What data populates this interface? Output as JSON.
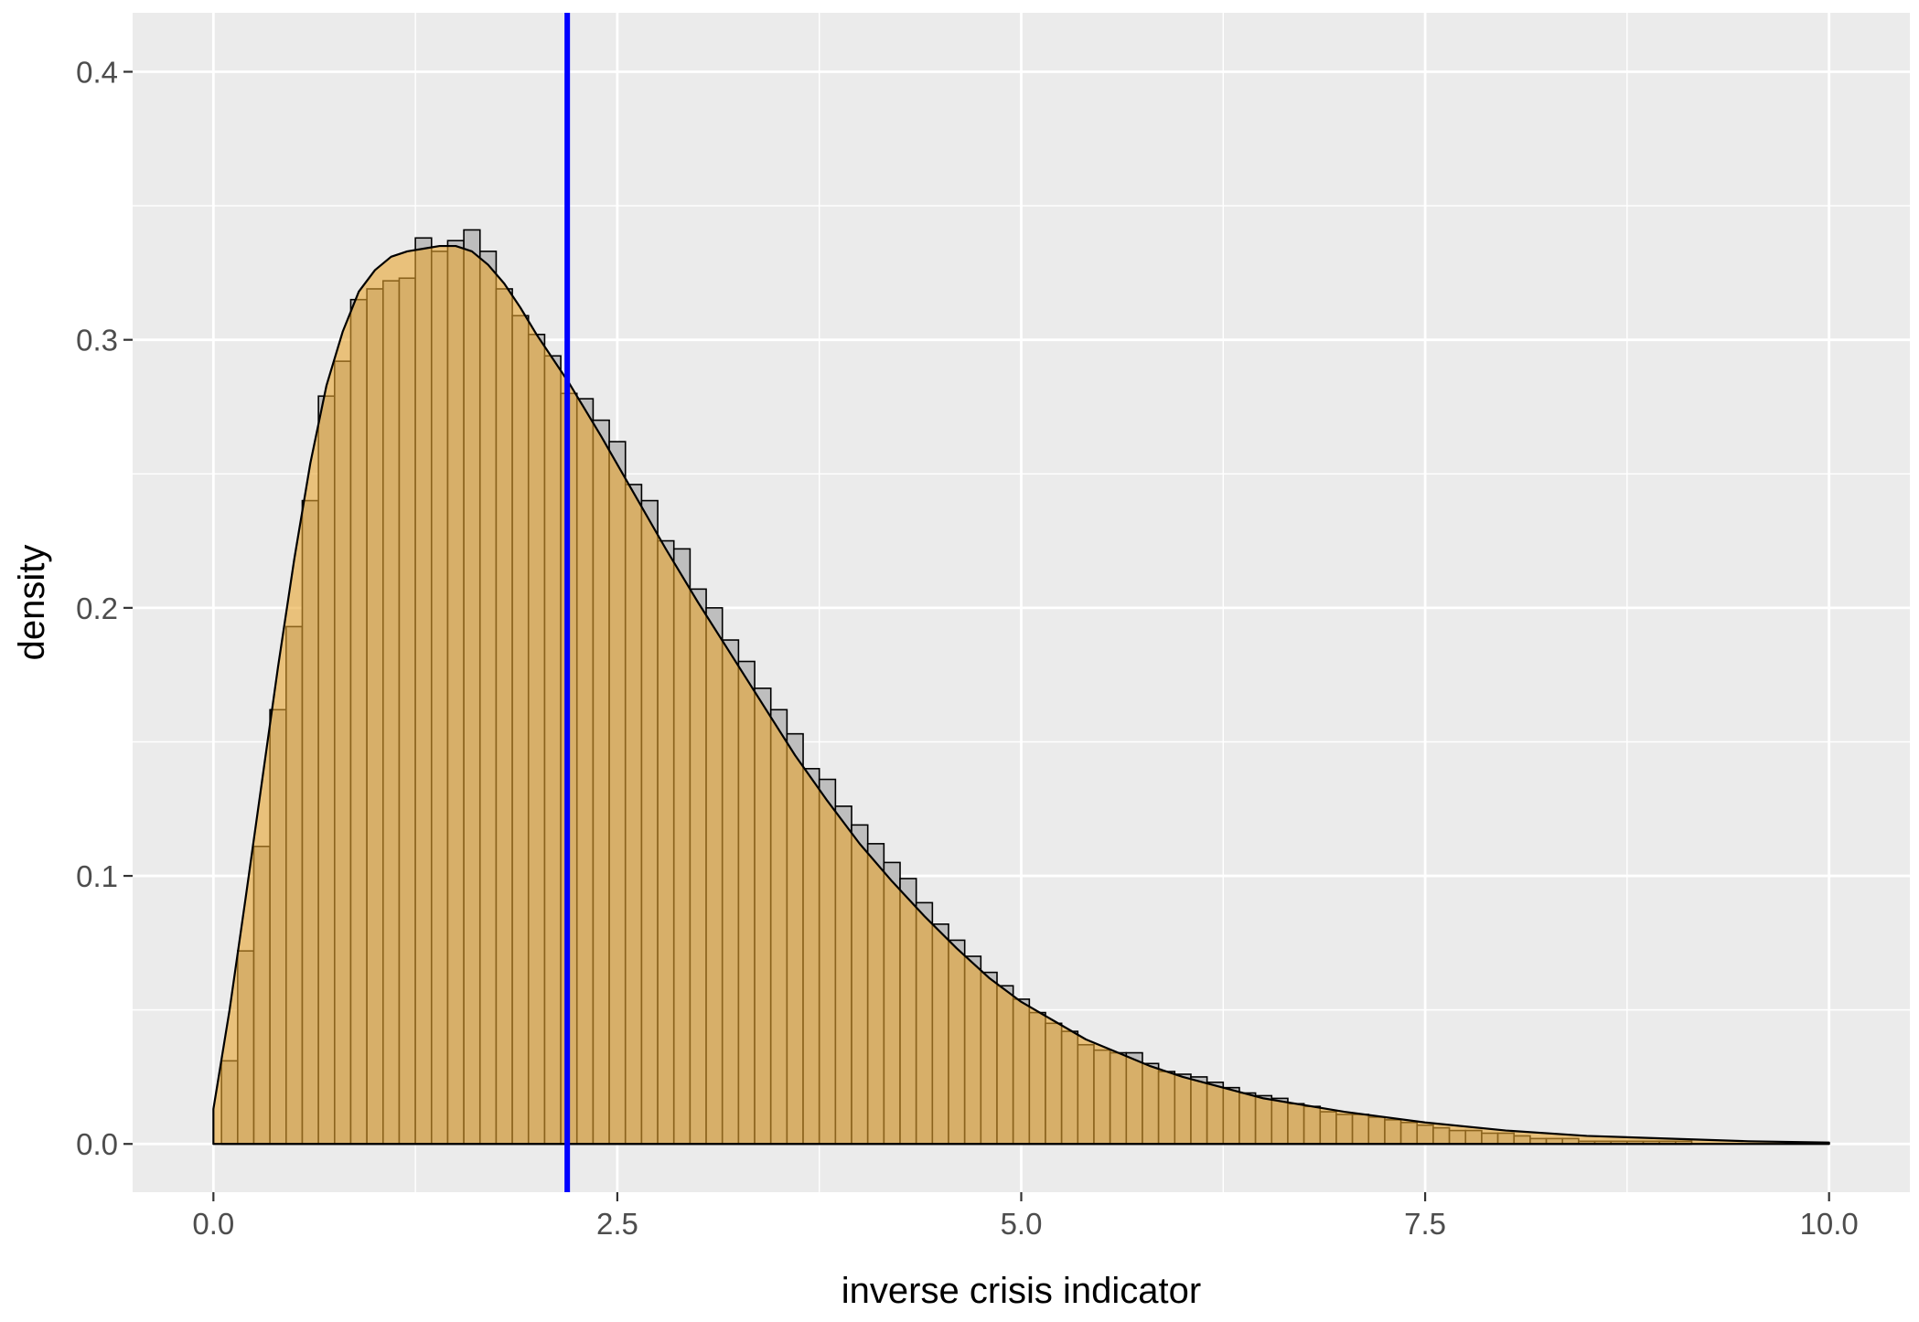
{
  "chart_data": {
    "type": "bar",
    "title": "",
    "xlabel": "inverse crisis indicator",
    "ylabel": "density",
    "xlim": [
      -0.5,
      10.5
    ],
    "ylim": [
      -0.018,
      0.422
    ],
    "x_ticks": [
      0,
      2.5,
      5,
      7.5,
      10
    ],
    "x_tick_labels": [
      "0.0",
      "2.5",
      "5.0",
      "7.5",
      "10.0"
    ],
    "y_ticks": [
      0,
      0.1,
      0.2,
      0.3,
      0.4
    ],
    "y_tick_labels": [
      "0.0",
      "0.1",
      "0.2",
      "0.3",
      "0.4"
    ],
    "grid": true,
    "legend": "none",
    "histogram": {
      "bin_width": 0.1,
      "bin_start": 0.05,
      "fill": "#bebebe",
      "stroke": "#000000",
      "values": [
        0.031,
        0.072,
        0.111,
        0.162,
        0.193,
        0.24,
        0.279,
        0.292,
        0.315,
        0.319,
        0.322,
        0.323,
        0.338,
        0.333,
        0.337,
        0.341,
        0.333,
        0.319,
        0.309,
        0.302,
        0.294,
        0.28,
        0.278,
        0.27,
        0.262,
        0.246,
        0.24,
        0.225,
        0.222,
        0.207,
        0.2,
        0.188,
        0.18,
        0.17,
        0.162,
        0.153,
        0.14,
        0.136,
        0.126,
        0.119,
        0.112,
        0.105,
        0.099,
        0.09,
        0.082,
        0.076,
        0.07,
        0.064,
        0.059,
        0.054,
        0.049,
        0.045,
        0.042,
        0.037,
        0.035,
        0.034,
        0.034,
        0.03,
        0.027,
        0.026,
        0.025,
        0.023,
        0.021,
        0.019,
        0.018,
        0.017,
        0.015,
        0.014,
        0.012,
        0.011,
        0.011,
        0.01,
        0.009,
        0.008,
        0.007,
        0.006,
        0.005,
        0.005,
        0.004,
        0.004,
        0.003,
        0.002,
        0.002,
        0.002,
        0.001,
        0.001,
        0.001,
        0.001,
        0.001,
        0.001,
        0.001
      ]
    },
    "density": {
      "fill": "#e8a530",
      "fill_opacity": 0.6,
      "stroke": "#000000",
      "x": [
        0,
        0.1,
        0.2,
        0.3,
        0.4,
        0.5,
        0.6,
        0.7,
        0.8,
        0.9,
        1.0,
        1.1,
        1.2,
        1.3,
        1.4,
        1.5,
        1.6,
        1.7,
        1.8,
        1.9,
        2.0,
        2.2,
        2.4,
        2.6,
        2.8,
        3.0,
        3.2,
        3.4,
        3.6,
        3.8,
        4.0,
        4.2,
        4.4,
        4.6,
        4.8,
        5.0,
        5.2,
        5.4,
        5.6,
        5.8,
        6.0,
        6.5,
        7.0,
        7.5,
        8.0,
        8.5,
        9.0,
        9.5,
        10.0
      ],
      "y": [
        0.013,
        0.05,
        0.092,
        0.135,
        0.178,
        0.218,
        0.254,
        0.283,
        0.303,
        0.318,
        0.326,
        0.331,
        0.333,
        0.334,
        0.335,
        0.335,
        0.333,
        0.328,
        0.321,
        0.312,
        0.302,
        0.284,
        0.264,
        0.243,
        0.222,
        0.202,
        0.183,
        0.164,
        0.145,
        0.128,
        0.112,
        0.098,
        0.085,
        0.073,
        0.062,
        0.053,
        0.046,
        0.039,
        0.034,
        0.029,
        0.025,
        0.017,
        0.012,
        0.008,
        0.005,
        0.003,
        0.002,
        0.001,
        0.0005
      ]
    },
    "vline": {
      "x": 2.19,
      "color": "#0000ff"
    },
    "colors": {
      "panel_background": "#ebebeb",
      "grid_major": "#ffffff",
      "tick_label": "#4d4d4d"
    }
  }
}
